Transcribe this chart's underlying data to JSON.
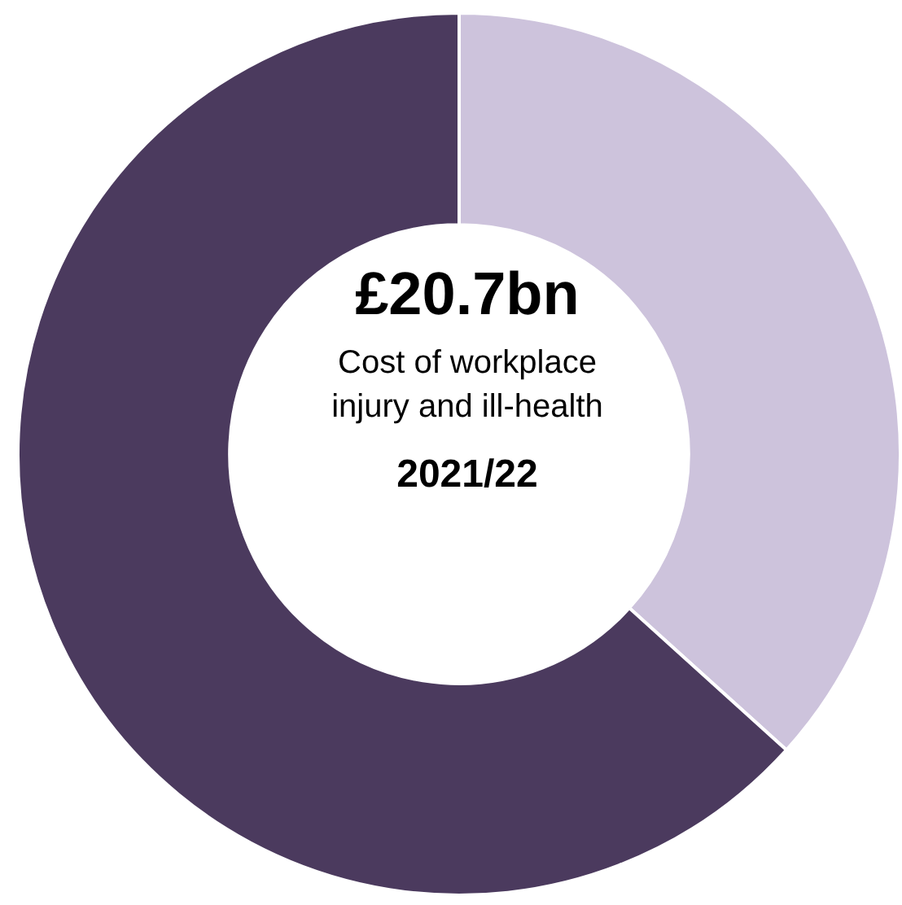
{
  "chart_data": {
    "type": "donut",
    "categories": [
      null,
      null
    ],
    "values": [
      36.7,
      63.3
    ],
    "colors": [
      "#cdc3dc",
      "#4b3a5e"
    ],
    "legend": false,
    "annotations": [
      "£20.7bn",
      "Cost of workplace injury and ill-health",
      "2021/22"
    ]
  }
}
